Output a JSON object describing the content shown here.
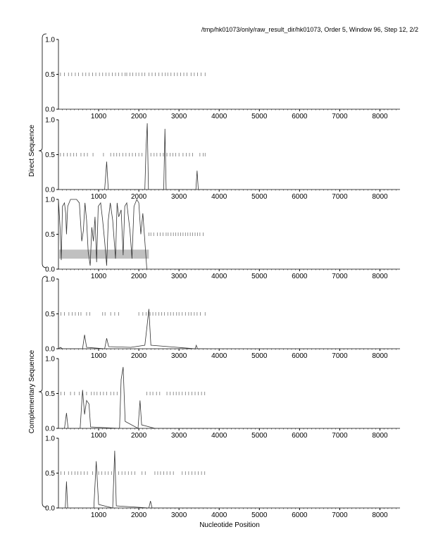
{
  "title": "/tmp/hk01073/only/raw_result_dir/hk01073, Order 5, Window 96, Step 12, 2/2",
  "chart_data": {
    "type": "line",
    "xlabel": "Nucleotide Position",
    "group_labels": [
      "Direct Sequence",
      "Complementary Sequence"
    ],
    "xlim": [
      0,
      8500
    ],
    "ylim": [
      0,
      1
    ],
    "xticks": [
      1000,
      2000,
      3000,
      4000,
      5000,
      6000,
      7000,
      8000
    ],
    "yticks": [
      "0.0",
      "0.5",
      "1.0"
    ],
    "panels": [
      {
        "name": "direct-frame-1",
        "curve": [],
        "orf_marks": [
          50,
          150,
          250,
          330,
          420,
          500,
          600,
          680,
          760,
          850,
          930,
          1020,
          1100,
          1180,
          1260,
          1340,
          1420,
          1500,
          1580,
          1660,
          1700,
          1780,
          1850,
          1930,
          2000,
          2080,
          2150,
          2250,
          2330,
          2410,
          2500,
          2580,
          2660,
          2720,
          2800,
          2880,
          2960,
          3040,
          3120,
          3200,
          3300,
          3380,
          3460,
          3550,
          3650
        ]
      },
      {
        "name": "direct-frame-2",
        "curve": [
          [
            0,
            0
          ],
          [
            1150,
            0
          ],
          [
            1200,
            0.4
          ],
          [
            1240,
            0
          ],
          [
            2150,
            0
          ],
          [
            2180,
            0.6
          ],
          [
            2210,
            0.95
          ],
          [
            2240,
            0
          ],
          [
            2620,
            0
          ],
          [
            2650,
            0.87
          ],
          [
            2680,
            0
          ],
          [
            3420,
            0
          ],
          [
            3450,
            0.27
          ],
          [
            3480,
            0
          ],
          [
            3700,
            0
          ]
        ],
        "orf_marks": [
          50,
          130,
          220,
          300,
          380,
          450,
          560,
          640,
          720,
          860,
          1120,
          1300,
          1380,
          1450,
          1520,
          1600,
          1680,
          1760,
          1840,
          1920,
          2000,
          2080,
          2300,
          2380,
          2450,
          2530,
          2610,
          2700,
          2780,
          2850,
          2920,
          3000,
          3100,
          3180,
          3260,
          3340,
          3520,
          3600,
          3650
        ]
      },
      {
        "name": "direct-frame-3",
        "curve": [
          [
            0,
            1.0
          ],
          [
            40,
            0.6
          ],
          [
            70,
            0.13
          ],
          [
            100,
            0.9
          ],
          [
            150,
            0.95
          ],
          [
            180,
            0.8
          ],
          [
            200,
            0.5
          ],
          [
            230,
            0.9
          ],
          [
            300,
            1.0
          ],
          [
            450,
            1.0
          ],
          [
            520,
            0.95
          ],
          [
            580,
            0.4
          ],
          [
            620,
            0.55
          ],
          [
            660,
            0.95
          ],
          [
            700,
            0.7
          ],
          [
            740,
            0.25
          ],
          [
            790,
            0.05
          ],
          [
            830,
            0.6
          ],
          [
            870,
            0.4
          ],
          [
            910,
            0.75
          ],
          [
            950,
            0.1
          ],
          [
            990,
            0.9
          ],
          [
            1050,
            0.95
          ],
          [
            1100,
            0.7
          ],
          [
            1150,
            0.4
          ],
          [
            1200,
            0.05
          ],
          [
            1240,
            0.7
          ],
          [
            1290,
            0.95
          ],
          [
            1350,
            0.7
          ],
          [
            1420,
            0.15
          ],
          [
            1460,
            0.95
          ],
          [
            1500,
            0.75
          ],
          [
            1560,
            0.85
          ],
          [
            1610,
            0.2
          ],
          [
            1650,
            0.9
          ],
          [
            1700,
            0.95
          ],
          [
            1780,
            0.55
          ],
          [
            1830,
            0.15
          ],
          [
            1880,
            0.9
          ],
          [
            1950,
            1.0
          ],
          [
            2000,
            0.95
          ],
          [
            2050,
            0.5
          ],
          [
            2100,
            0.8
          ],
          [
            2150,
            0.4
          ],
          [
            2200,
            0.0
          ]
        ],
        "orf_marks": [
          2250,
          2300,
          2370,
          2460,
          2530,
          2600,
          2680,
          2730,
          2800,
          2860,
          2920,
          2980,
          3040,
          3100,
          3160,
          3220,
          3280,
          3340,
          3400,
          3460,
          3520,
          3600
        ],
        "shaded_region": {
          "x": [
            20,
            2250
          ],
          "y": [
            0.15,
            0.28
          ]
        }
      },
      {
        "name": "complementary-frame-1",
        "curve": [
          [
            0,
            0
          ],
          [
            50,
            0.02
          ],
          [
            100,
            0
          ],
          [
            600,
            0
          ],
          [
            650,
            0.2
          ],
          [
            700,
            0.02
          ],
          [
            1150,
            0
          ],
          [
            1200,
            0.15
          ],
          [
            1250,
            0.03
          ],
          [
            1800,
            0.02
          ],
          [
            2150,
            0.05
          ],
          [
            2200,
            0.3
          ],
          [
            2250,
            0.57
          ],
          [
            2300,
            0.05
          ],
          [
            3400,
            0
          ],
          [
            3430,
            0.05
          ],
          [
            3460,
            0
          ],
          [
            3700,
            0
          ]
        ],
        "orf_marks": [
          60,
          150,
          260,
          340,
          420,
          500,
          560,
          700,
          780,
          1100,
          1160,
          1300,
          1400,
          1500,
          2000,
          2100,
          2180,
          2280,
          2350,
          2420,
          2500,
          2570,
          2640,
          2720,
          2790,
          2860,
          2940,
          3000,
          3080,
          3160,
          3240,
          3300,
          3380,
          3450,
          3530,
          3650
        ]
      },
      {
        "name": "complementary-frame-2",
        "curve": [
          [
            0,
            0
          ],
          [
            150,
            0
          ],
          [
            200,
            0.22
          ],
          [
            240,
            0
          ],
          [
            540,
            0
          ],
          [
            600,
            0.55
          ],
          [
            650,
            0.2
          ],
          [
            700,
            0.4
          ],
          [
            760,
            0.35
          ],
          [
            800,
            0.02
          ],
          [
            1520,
            0
          ],
          [
            1560,
            0.7
          ],
          [
            1610,
            0.88
          ],
          [
            1660,
            0.1
          ],
          [
            1980,
            0
          ],
          [
            2030,
            0.4
          ],
          [
            2070,
            0.05
          ],
          [
            2400,
            0
          ],
          [
            3700,
            0
          ]
        ],
        "orf_marks": [
          60,
          150,
          300,
          400,
          520,
          600,
          700,
          820,
          890,
          960,
          1040,
          1120,
          1200,
          1300,
          1380,
          1460,
          2200,
          2280,
          2350,
          2440,
          2520,
          2700,
          2780,
          2860,
          2930,
          3000,
          3080,
          3160,
          3240,
          3320,
          3400,
          3480,
          3560,
          3640
        ]
      },
      {
        "name": "complementary-frame-3",
        "curve": [
          [
            0,
            0
          ],
          [
            170,
            0
          ],
          [
            200,
            0.38
          ],
          [
            230,
            0
          ],
          [
            880,
            0
          ],
          [
            940,
            0.67
          ],
          [
            1000,
            0.05
          ],
          [
            1350,
            0
          ],
          [
            1400,
            0.82
          ],
          [
            1440,
            0.03
          ],
          [
            2250,
            0
          ],
          [
            2290,
            0.1
          ],
          [
            2330,
            0
          ],
          [
            3700,
            0
          ]
        ],
        "orf_marks": [
          60,
          150,
          250,
          330,
          410,
          480,
          560,
          640,
          720,
          850,
          1000,
          1080,
          1160,
          1240,
          1320,
          1500,
          1580,
          1660,
          1740,
          1820,
          1900,
          2080,
          2160,
          2400,
          2470,
          2540,
          2620,
          2700,
          2780,
          2860,
          3080,
          3160,
          3240,
          3320,
          3400,
          3480,
          3560,
          3640
        ]
      }
    ]
  }
}
